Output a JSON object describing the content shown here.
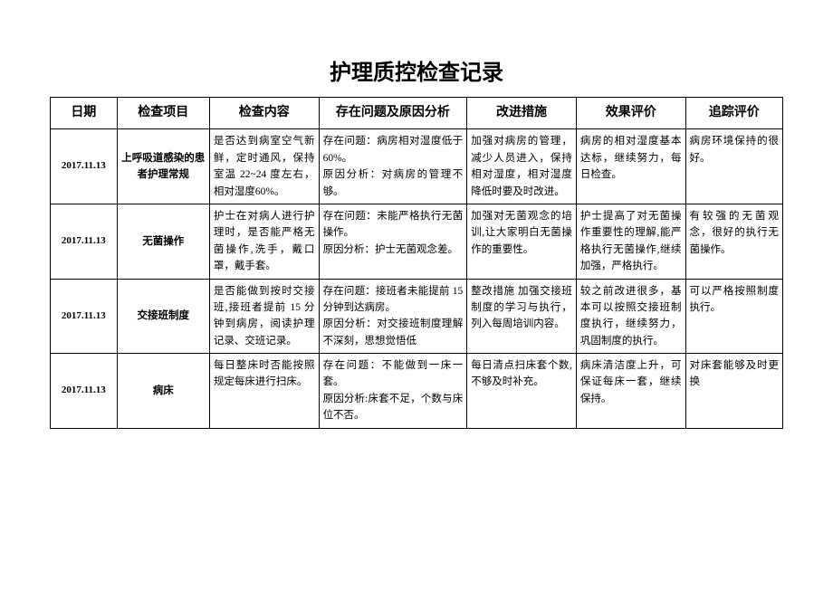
{
  "title": "护理质控检查记录",
  "columns": [
    "日期",
    "检查项目",
    "检查内容",
    "存在问题及原因分析",
    "改进措施",
    "效果评价",
    "追踪评价"
  ],
  "rows": [
    {
      "date": "2017.11.13",
      "item": "上呼吸道感染的患者护理常规",
      "content": "是否达到病室空气新鲜，定时通风，保持室温 22~24 度左右，相对湿度60%。",
      "problem": "存在问题：病房相对湿度低于60%。\n原因分析：对病房的管理不够。",
      "measure": "加强对病房的管理，减少人员进入，保持相对湿度，相对湿度降低时要及时改进。",
      "effect": "病房的相对湿度基本达标，继续努力，每日检查。",
      "follow": "病房环境保持的很好。"
    },
    {
      "date": "2017.11.13",
      "item": "无菌操作",
      "content": "护士在对病人进行护理时，是否能严格无菌操作,洗手，戴口罩，戴手套。",
      "problem": "存在问题：未能严格执行无菌操作。\n原因分析：护士无菌观念差。",
      "measure": "加强对无菌观念的培训,让大家明白无菌操作的重要性。",
      "effect": "护士提高了对无菌操作重要性的理解,能严格执行无菌操作,继续加强，严格执行。",
      "follow": "有较强的无菌观念，很好的执行无菌操作。"
    },
    {
      "date": "2017.11.13",
      "item": "交接班制度",
      "content": "是否能做到按时交接班,接班者提前 15 分钟到病房，阅读护理记录、交班记录。",
      "problem": "存在问题：接班者未能提前 15 分钟到达病房。\n原因分析：对交接班制度理解不深刻，思想觉悟低",
      "measure": "整改措施 加强交接班制度的学习与执行，列入每周培训内容。",
      "effect": "较之前改进很多，基本可以按照交接班制度执行，继续努力，巩固制度的执行。",
      "follow": "可以严格按照制度执行。"
    },
    {
      "date": "2017.11.13",
      "item": "病床",
      "content": "每日整床时否能按照规定每床进行扫床。",
      "problem": "存在问题：不能做到一床一套。\n原因分析:床套不足，个数与床位不否。",
      "measure": "每日清点扫床套个数,不够及时补充。",
      "effect": "病床清洁度上升，可保证每床一套，继续保持。",
      "follow": "对床套能够及时更换"
    }
  ]
}
